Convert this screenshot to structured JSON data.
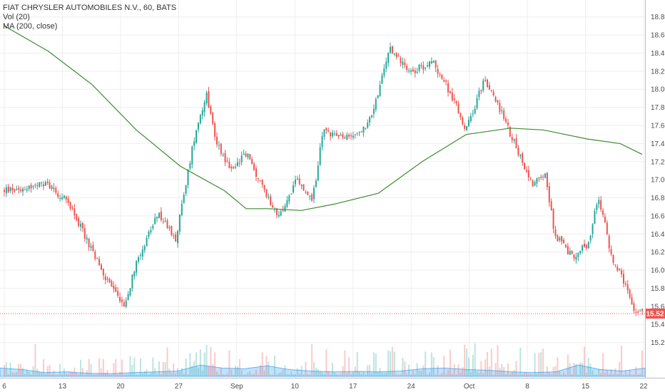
{
  "legend": {
    "symbol": "FIAT CHRYSLER AUTOMOBILES N.V., 60, BATS",
    "volume": "Vol (20)",
    "ma": "MA (200, close)"
  },
  "colors": {
    "up": "#26a69a",
    "down": "#ef5350",
    "ma": "#3c8c2f",
    "vol_ma_fill": "#90caf9",
    "price_line": "#ef5350",
    "grid": "#eeeeee"
  },
  "chart_data": {
    "type": "candlestick",
    "interval": "60",
    "exchange": "BATS",
    "yaxis": {
      "position": "right",
      "ylim": [
        15.0,
        18.9
      ],
      "ticks": [
        "18.80",
        "18.60",
        "18.40",
        "18.20",
        "18.00",
        "17.80",
        "17.60",
        "17.40",
        "17.20",
        "17.00",
        "16.80",
        "16.60",
        "16.40",
        "16.20",
        "16.00",
        "15.80",
        "15.60",
        "15.40",
        "15.20"
      ]
    },
    "xaxis": {
      "tick_labels": [
        "6",
        "13",
        "20",
        "27",
        "Sep",
        "10",
        "17",
        "24",
        "Oct",
        "8",
        "15",
        "22"
      ]
    },
    "last_price": 15.52,
    "last_price_label": "15.52",
    "close_path": [
      {
        "x": 0,
        "price": 16.88
      },
      {
        "x": 2,
        "price": 16.95
      },
      {
        "x": 3,
        "price": 16.72
      },
      {
        "x": 4.5,
        "price": 15.95
      },
      {
        "x": 5.5,
        "price": 15.6
      },
      {
        "x": 6,
        "price": 16.1
      },
      {
        "x": 7,
        "price": 16.62
      },
      {
        "x": 7.8,
        "price": 16.35
      },
      {
        "x": 8.2,
        "price": 16.88
      },
      {
        "x": 8.7,
        "price": 17.55
      },
      {
        "x": 9.2,
        "price": 17.95
      },
      {
        "x": 9.6,
        "price": 17.45
      },
      {
        "x": 10.3,
        "price": 17.1
      },
      {
        "x": 11.0,
        "price": 17.3
      },
      {
        "x": 11.6,
        "price": 16.98
      },
      {
        "x": 12.5,
        "price": 16.58
      },
      {
        "x": 13.3,
        "price": 17.0
      },
      {
        "x": 14.0,
        "price": 16.75
      },
      {
        "x": 14.5,
        "price": 17.55
      },
      {
        "x": 15.5,
        "price": 17.45
      },
      {
        "x": 16.5,
        "price": 17.58
      },
      {
        "x": 17.0,
        "price": 17.95
      },
      {
        "x": 17.5,
        "price": 18.45
      },
      {
        "x": 18.5,
        "price": 18.2
      },
      {
        "x": 19.5,
        "price": 18.3
      },
      {
        "x": 20.3,
        "price": 17.95
      },
      {
        "x": 21.0,
        "price": 17.55
      },
      {
        "x": 21.8,
        "price": 18.1
      },
      {
        "x": 22.5,
        "price": 17.8
      },
      {
        "x": 23.2,
        "price": 17.4
      },
      {
        "x": 24.0,
        "price": 16.95
      },
      {
        "x": 24.6,
        "price": 17.1
      },
      {
        "x": 25.0,
        "price": 16.4
      },
      {
        "x": 25.8,
        "price": 16.15
      },
      {
        "x": 26.6,
        "price": 16.3
      },
      {
        "x": 27.0,
        "price": 16.85
      },
      {
        "x": 27.6,
        "price": 16.15
      },
      {
        "x": 28.2,
        "price": 15.85
      },
      {
        "x": 28.6,
        "price": 15.55
      },
      {
        "x": 29.0,
        "price": 15.52
      }
    ],
    "volume_ma_profile": [
      0.22,
      0.18,
      0.1,
      0.12,
      0.08,
      0.07,
      0.1,
      0.12,
      0.14,
      0.3,
      0.22,
      0.2,
      0.28,
      0.18,
      0.14,
      0.12,
      0.13,
      0.12,
      0.14,
      0.2,
      0.22,
      0.18,
      0.16,
      0.12,
      0.1,
      0.12,
      0.3,
      0.18,
      0.14,
      0.22
    ],
    "ma_series": {
      "name": "MA (200, close)",
      "points": [
        {
          "x": 0,
          "price": 18.7
        },
        {
          "x": 2,
          "price": 18.42
        },
        {
          "x": 4,
          "price": 18.05
        },
        {
          "x": 6,
          "price": 17.55
        },
        {
          "x": 8,
          "price": 17.15
        },
        {
          "x": 10,
          "price": 16.88
        },
        {
          "x": 11,
          "price": 16.68
        },
        {
          "x": 12,
          "price": 16.68
        },
        {
          "x": 13.5,
          "price": 16.66
        },
        {
          "x": 15,
          "price": 16.73
        },
        {
          "x": 17,
          "price": 16.85
        },
        {
          "x": 19,
          "price": 17.2
        },
        {
          "x": 21,
          "price": 17.5
        },
        {
          "x": 23,
          "price": 17.57
        },
        {
          "x": 24.5,
          "price": 17.55
        },
        {
          "x": 26.5,
          "price": 17.45
        },
        {
          "x": 28,
          "price": 17.4
        },
        {
          "x": 29,
          "price": 17.28
        }
      ]
    }
  }
}
